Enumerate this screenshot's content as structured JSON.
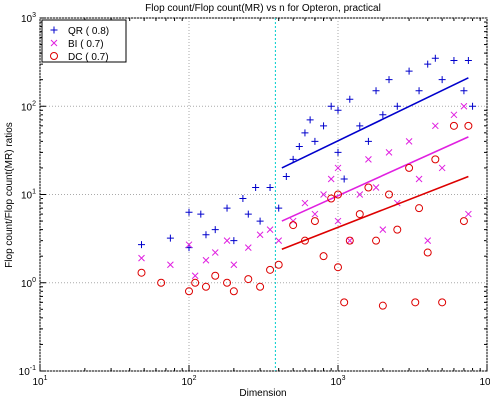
{
  "chart_data": {
    "type": "scatter",
    "title": "Flop count/Flop count(MR) vs n for Opteron, practical",
    "xlabel": "Dimension",
    "ylabel": "Flop count/Flop count(MR) ratios",
    "xscale": "log",
    "yscale": "log",
    "grid": true,
    "legend": "upper left",
    "xlim": [
      10,
      10000
    ],
    "xticks": [
      {
        "value": 10,
        "label": "10",
        "exponent": "1"
      },
      {
        "value": 100,
        "label": "10",
        "exponent": "2"
      },
      {
        "value": 1000,
        "label": "10",
        "exponent": "3"
      },
      {
        "value": 10000,
        "label": "10",
        "exponent": "4"
      }
    ],
    "ylim": [
      0.1,
      1000
    ],
    "yticks": [
      {
        "value": 0.1,
        "label": "10",
        "exponent": "-1"
      },
      {
        "value": 1,
        "label": "10",
        "exponent": "0"
      },
      {
        "value": 10,
        "label": "10",
        "exponent": "1"
      },
      {
        "value": 100,
        "label": "10",
        "exponent": "2"
      },
      {
        "value": 1000,
        "label": "10",
        "exponent": "3"
      }
    ],
    "vline": {
      "x": 380,
      "color": "#00cccc"
    },
    "series": [
      {
        "name": "QR  ( 0.8)",
        "marker": "plus",
        "color": "#0000cc",
        "x": [
          48,
          75,
          100,
          100,
          120,
          130,
          150,
          180,
          200,
          230,
          250,
          280,
          300,
          350,
          400,
          450,
          500,
          550,
          600,
          650,
          700,
          800,
          900,
          1000,
          1000,
          1100,
          1200,
          1400,
          1600,
          1800,
          2000,
          2200,
          2500,
          3000,
          3500,
          4000,
          4500,
          5000,
          6000,
          7000,
          7500,
          8000
        ],
        "y": [
          2.7,
          3.2,
          6.3,
          2.5,
          6,
          3.5,
          4,
          7,
          3,
          9,
          6,
          12,
          5,
          12,
          7,
          16,
          25,
          35,
          50,
          70,
          40,
          60,
          100,
          90,
          30,
          15,
          120,
          60,
          40,
          150,
          80,
          200,
          100,
          250,
          150,
          300,
          350,
          200,
          330,
          150,
          330,
          100
        ],
        "fit": {
          "x": [
            420,
            7500
          ],
          "y": [
            20,
            210
          ]
        }
      },
      {
        "name": "BI  ( 0.7)",
        "marker": "x",
        "color": "#e020e0",
        "x": [
          48,
          75,
          100,
          110,
          130,
          150,
          180,
          200,
          250,
          300,
          350,
          400,
          500,
          600,
          700,
          800,
          900,
          1000,
          1000,
          1200,
          1400,
          1600,
          1800,
          2000,
          2200,
          2500,
          3000,
          3500,
          4000,
          4500,
          5000,
          6000,
          7000,
          7500
        ],
        "y": [
          1.9,
          1.6,
          2.7,
          1.2,
          1.8,
          2.2,
          3,
          1.6,
          2.5,
          3.5,
          4,
          3,
          5,
          8,
          6,
          10,
          15,
          20,
          5,
          3,
          10,
          25,
          12,
          4,
          30,
          8,
          40,
          15,
          3,
          60,
          20,
          80,
          100,
          6
        ],
        "fit": {
          "x": [
            420,
            7500
          ],
          "y": [
            5,
            45
          ]
        }
      },
      {
        "name": "DC  ( 0.7)",
        "marker": "circle",
        "color": "#dd0000",
        "x": [
          48,
          65,
          100,
          110,
          130,
          150,
          180,
          200,
          250,
          300,
          350,
          400,
          500,
          600,
          700,
          800,
          900,
          1000,
          1000,
          1100,
          1200,
          1400,
          1600,
          1800,
          2000,
          2200,
          2500,
          3000,
          3300,
          3500,
          4000,
          4500,
          5000,
          6000,
          7000,
          7500
        ],
        "y": [
          1.3,
          1,
          0.8,
          1,
          0.9,
          1.2,
          1,
          0.8,
          1.1,
          0.9,
          1.4,
          1.6,
          4.5,
          3,
          5,
          2,
          9,
          1.5,
          10,
          0.6,
          3,
          6,
          12,
          3,
          0.55,
          10,
          4,
          20,
          0.6,
          7,
          2.2,
          25,
          0.6,
          60,
          5,
          60
        ],
        "fit": {
          "x": [
            420,
            7500
          ],
          "y": [
            2.4,
            16
          ]
        }
      }
    ]
  }
}
